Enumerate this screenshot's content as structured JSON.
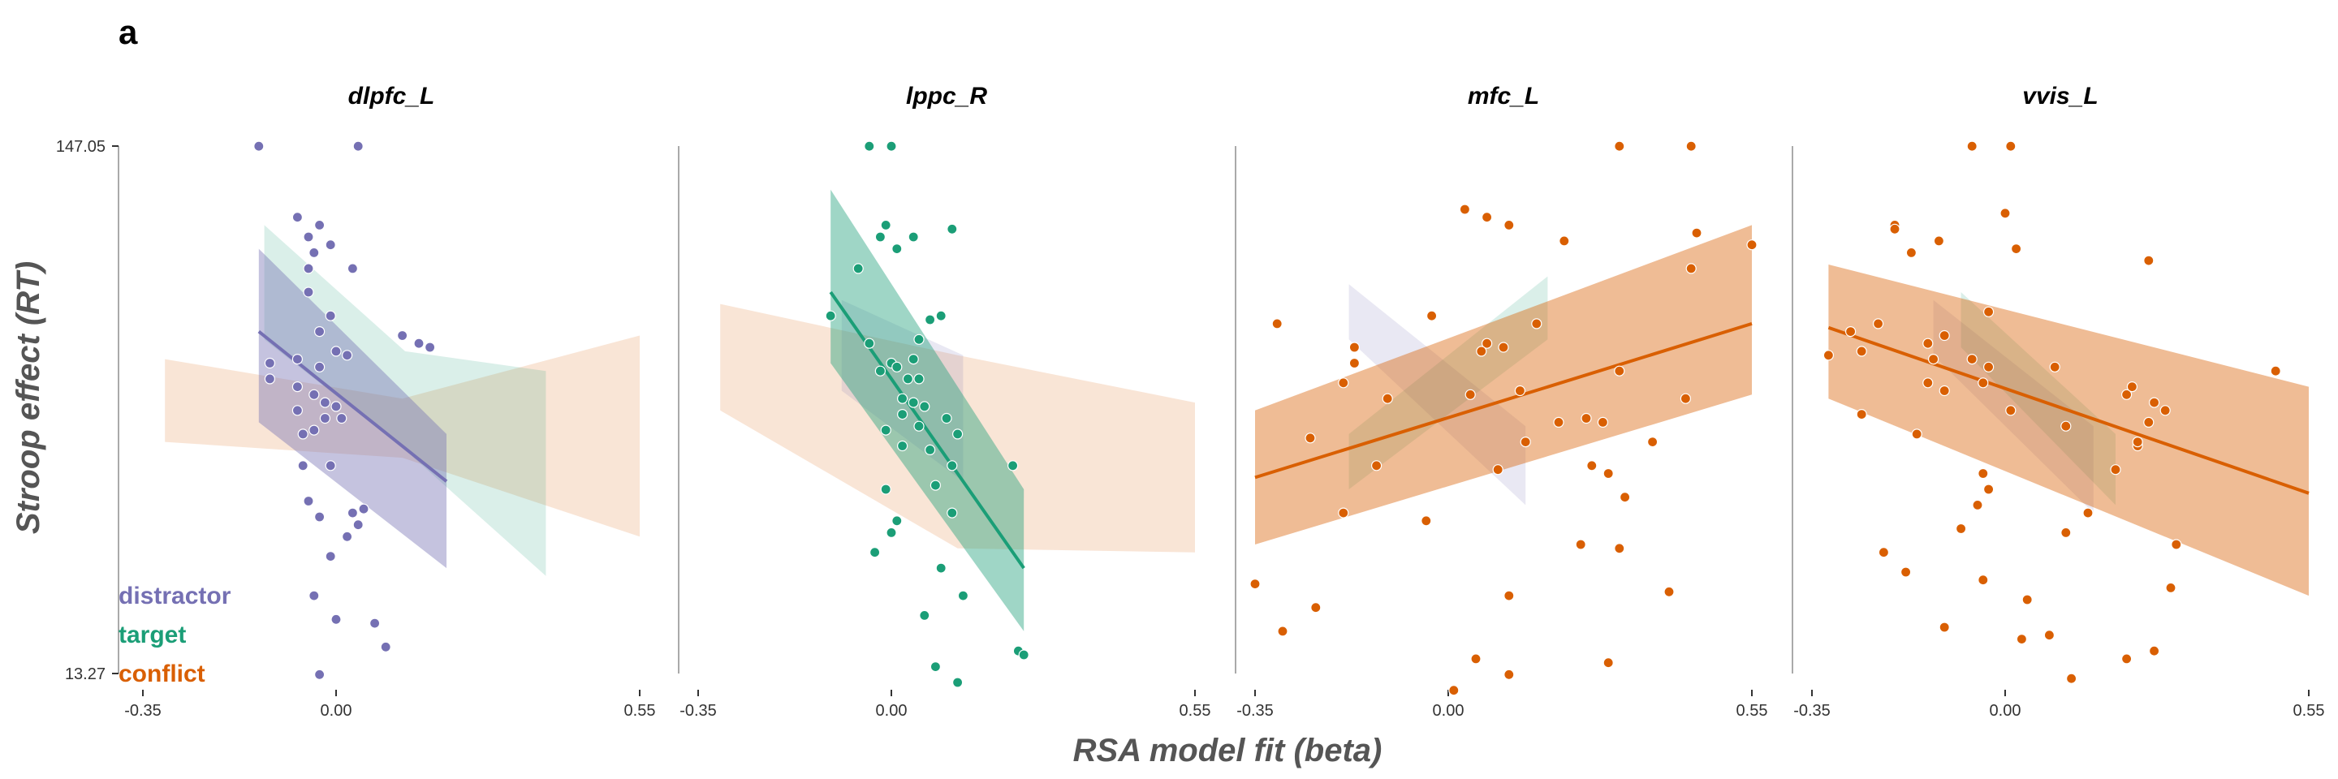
{
  "panel_label": "a",
  "colors": {
    "distractor": "#7570b3",
    "target": "#1b9e77",
    "conflict": "#d95f02"
  },
  "chart_data": {
    "type": "scatter",
    "xlabel": "RSA model fit (beta)",
    "ylabel": "Stroop effect (RT)",
    "xlim": [
      -0.35,
      0.55
    ],
    "ylim": [
      13.27,
      147.05
    ],
    "x_tick_labels": [
      "-0.35",
      "0.00",
      "0.55"
    ],
    "y_tick_labels": [
      "147.05",
      "13.27"
    ],
    "legend": {
      "placement": "bottom-left",
      "entries": [
        "distractor",
        "target",
        "conflict"
      ]
    },
    "grid": false,
    "facets": [
      {
        "title": "dlpfc_L",
        "highlight": "distractor",
        "fits": [
          {
            "group": "conflict",
            "x0": -0.31,
            "x1": 0.55,
            "ci": [
              [
                72,
                93
              ],
              [
                68,
                83
              ],
              [
                48,
                99
              ]
            ],
            "line": false
          },
          {
            "group": "target",
            "x0": -0.13,
            "x1": 0.38,
            "ci": [
              [
                98,
                127
              ],
              [
                70,
                95
              ],
              [
                38,
                90
              ]
            ],
            "line": false
          },
          {
            "group": "distractor",
            "x0": -0.14,
            "x1": 0.2,
            "y0": 100,
            "y1": 62,
            "ci": [
              [
                77,
                121
              ],
              [
                40,
                74
              ]
            ],
            "line": true
          }
        ],
        "points": [
          [
            -0.14,
            147
          ],
          [
            0.04,
            147
          ],
          [
            -0.07,
            129
          ],
          [
            -0.03,
            127
          ],
          [
            -0.05,
            124
          ],
          [
            -0.04,
            120
          ],
          [
            -0.01,
            122
          ],
          [
            -0.05,
            116
          ],
          [
            0.03,
            116
          ],
          [
            -0.05,
            110
          ],
          [
            -0.01,
            104
          ],
          [
            0.12,
            99
          ],
          [
            0.15,
            97
          ],
          [
            0.17,
            96
          ],
          [
            -0.03,
            100
          ],
          [
            0.0,
            95
          ],
          [
            0.02,
            94
          ],
          [
            -0.12,
            92
          ],
          [
            -0.07,
            93
          ],
          [
            -0.03,
            91
          ],
          [
            -0.12,
            88
          ],
          [
            -0.07,
            86
          ],
          [
            -0.04,
            84
          ],
          [
            -0.02,
            82
          ],
          [
            0.0,
            81
          ],
          [
            -0.07,
            80
          ],
          [
            -0.02,
            78
          ],
          [
            0.01,
            78
          ],
          [
            -0.04,
            75
          ],
          [
            -0.06,
            74
          ],
          [
            -0.01,
            66
          ],
          [
            -0.06,
            66
          ],
          [
            -0.05,
            57
          ],
          [
            0.05,
            55
          ],
          [
            0.03,
            54
          ],
          [
            -0.03,
            53
          ],
          [
            0.04,
            51
          ],
          [
            0.02,
            48
          ],
          [
            -0.01,
            43
          ],
          [
            -0.04,
            33
          ],
          [
            0.0,
            27
          ],
          [
            0.07,
            26
          ],
          [
            0.09,
            20
          ],
          [
            -0.03,
            13
          ]
        ]
      },
      {
        "title": "lppc_R",
        "highlight": "target",
        "fits": [
          {
            "group": "conflict",
            "x0": -0.31,
            "x1": 0.55,
            "ci": [
              [
                80,
                107
              ],
              [
                45,
                94
              ],
              [
                44,
                82
              ]
            ],
            "line": false
          },
          {
            "group": "distractor",
            "x0": -0.09,
            "x1": 0.13,
            "ci": [
              [
                85,
                108
              ],
              [
                62,
                94
              ]
            ],
            "line": false
          },
          {
            "group": "target",
            "x0": -0.11,
            "x1": 0.24,
            "y0": 110,
            "y1": 40,
            "ci": [
              [
                92,
                136
              ],
              [
                24,
                60
              ]
            ],
            "line": true
          }
        ],
        "points": [
          [
            -0.04,
            147
          ],
          [
            0.0,
            147
          ],
          [
            0.04,
            124
          ],
          [
            -0.01,
            127
          ],
          [
            -0.02,
            124
          ],
          [
            0.01,
            121
          ],
          [
            0.11,
            126
          ],
          [
            -0.06,
            116
          ],
          [
            -0.11,
            104
          ],
          [
            0.07,
            103
          ],
          [
            0.09,
            104
          ],
          [
            0.05,
            98
          ],
          [
            -0.04,
            97
          ],
          [
            0.0,
            92
          ],
          [
            0.01,
            91
          ],
          [
            0.04,
            93
          ],
          [
            0.05,
            88
          ],
          [
            0.03,
            88
          ],
          [
            -0.02,
            90
          ],
          [
            0.02,
            83
          ],
          [
            0.04,
            82
          ],
          [
            0.06,
            81
          ],
          [
            0.02,
            79
          ],
          [
            0.05,
            76
          ],
          [
            -0.01,
            75
          ],
          [
            0.12,
            74
          ],
          [
            0.1,
            78
          ],
          [
            0.02,
            71
          ],
          [
            0.07,
            70
          ],
          [
            0.11,
            66
          ],
          [
            0.22,
            66
          ],
          [
            0.08,
            61
          ],
          [
            -0.01,
            60
          ],
          [
            0.11,
            54
          ],
          [
            0.01,
            52
          ],
          [
            0.0,
            49
          ],
          [
            -0.03,
            44
          ],
          [
            0.09,
            40
          ],
          [
            0.13,
            33
          ],
          [
            0.06,
            28
          ],
          [
            0.23,
            19
          ],
          [
            0.24,
            18
          ],
          [
            0.08,
            15
          ],
          [
            0.12,
            11
          ]
        ]
      },
      {
        "title": "mfc_L",
        "highlight": "conflict",
        "fits": [
          {
            "group": "distractor",
            "x0": -0.18,
            "x1": 0.14,
            "ci": [
              [
                112,
                98
              ],
              [
                76,
                56
              ]
            ],
            "line": false
          },
          {
            "group": "target",
            "x0": -0.18,
            "x1": 0.18,
            "ci": [
              [
                60,
                74
              ],
              [
                114,
                98
              ]
            ],
            "line": false
          },
          {
            "group": "conflict",
            "x0": -0.35,
            "x1": 0.55,
            "y0": 63,
            "y1": 102,
            "ci": [
              [
                46,
                80
              ],
              [
                84,
                127
              ]
            ],
            "line": true
          }
        ],
        "points": [
          [
            0.31,
            147
          ],
          [
            0.44,
            147
          ],
          [
            0.03,
            131
          ],
          [
            0.07,
            129
          ],
          [
            0.11,
            127
          ],
          [
            0.21,
            123
          ],
          [
            0.45,
            125
          ],
          [
            0.55,
            122
          ],
          [
            0.44,
            116
          ],
          [
            -0.03,
            104
          ],
          [
            -0.31,
            102
          ],
          [
            0.16,
            102
          ],
          [
            0.07,
            97
          ],
          [
            0.1,
            96
          ],
          [
            -0.17,
            96
          ],
          [
            -0.17,
            92
          ],
          [
            0.06,
            95
          ],
          [
            0.31,
            90
          ],
          [
            -0.19,
            87
          ],
          [
            0.13,
            85
          ],
          [
            0.04,
            84
          ],
          [
            -0.11,
            83
          ],
          [
            0.43,
            83
          ],
          [
            0.2,
            77
          ],
          [
            0.25,
            78
          ],
          [
            0.28,
            77
          ],
          [
            -0.25,
            73
          ],
          [
            0.14,
            72
          ],
          [
            0.37,
            72
          ],
          [
            0.26,
            66
          ],
          [
            -0.13,
            66
          ],
          [
            0.09,
            65
          ],
          [
            0.29,
            64
          ],
          [
            0.32,
            58
          ],
          [
            -0.19,
            54
          ],
          [
            -0.04,
            52
          ],
          [
            0.24,
            46
          ],
          [
            0.31,
            45
          ],
          [
            -0.35,
            36
          ],
          [
            0.4,
            34
          ],
          [
            0.11,
            33
          ],
          [
            -0.24,
            30
          ],
          [
            -0.3,
            24
          ],
          [
            0.05,
            17
          ],
          [
            0.29,
            16
          ],
          [
            0.11,
            13
          ],
          [
            0.01,
            9
          ]
        ]
      },
      {
        "title": "vvis_L",
        "highlight": "conflict",
        "fits": [
          {
            "group": "distractor",
            "x0": -0.13,
            "x1": 0.16,
            "ci": [
              [
                94,
                108
              ],
              [
                76,
                54
              ]
            ],
            "line": false
          },
          {
            "group": "target",
            "x0": -0.08,
            "x1": 0.2,
            "ci": [
              [
                96,
                110
              ],
              [
                74,
                56
              ]
            ],
            "line": false
          },
          {
            "group": "conflict",
            "x0": -0.32,
            "x1": 0.55,
            "y0": 101,
            "y1": 59,
            "ci": [
              [
                83,
                117
              ],
              [
                86,
                33
              ]
            ],
            "line": true
          }
        ],
        "points": [
          [
            -0.06,
            147
          ],
          [
            0.01,
            147
          ],
          [
            -0.2,
            127
          ],
          [
            -0.2,
            126
          ],
          [
            0.0,
            130
          ],
          [
            -0.12,
            123
          ],
          [
            0.02,
            121
          ],
          [
            -0.17,
            120
          ],
          [
            0.26,
            118
          ],
          [
            -0.23,
            102
          ],
          [
            -0.03,
            105
          ],
          [
            -0.28,
            100
          ],
          [
            -0.11,
            99
          ],
          [
            -0.14,
            97
          ],
          [
            -0.32,
            94
          ],
          [
            -0.26,
            95
          ],
          [
            -0.13,
            93
          ],
          [
            -0.06,
            93
          ],
          [
            -0.03,
            91
          ],
          [
            0.09,
            91
          ],
          [
            0.49,
            90
          ],
          [
            -0.14,
            87
          ],
          [
            -0.04,
            87
          ],
          [
            -0.11,
            85
          ],
          [
            0.22,
            84
          ],
          [
            0.23,
            86
          ],
          [
            -0.26,
            79
          ],
          [
            0.27,
            82
          ],
          [
            0.29,
            80
          ],
          [
            0.01,
            80
          ],
          [
            0.26,
            77
          ],
          [
            0.11,
            76
          ],
          [
            -0.16,
            74
          ],
          [
            0.24,
            71
          ],
          [
            0.24,
            72
          ],
          [
            -0.04,
            64
          ],
          [
            0.2,
            65
          ],
          [
            -0.03,
            60
          ],
          [
            -0.05,
            56
          ],
          [
            0.15,
            54
          ],
          [
            -0.08,
            50
          ],
          [
            0.11,
            49
          ],
          [
            0.31,
            46
          ],
          [
            -0.22,
            44
          ],
          [
            -0.18,
            39
          ],
          [
            0.3,
            35
          ],
          [
            -0.04,
            37
          ],
          [
            0.04,
            32
          ],
          [
            -0.11,
            25
          ],
          [
            0.08,
            23
          ],
          [
            0.03,
            22
          ],
          [
            0.27,
            19
          ],
          [
            0.22,
            17
          ],
          [
            0.12,
            12
          ]
        ]
      }
    ]
  }
}
